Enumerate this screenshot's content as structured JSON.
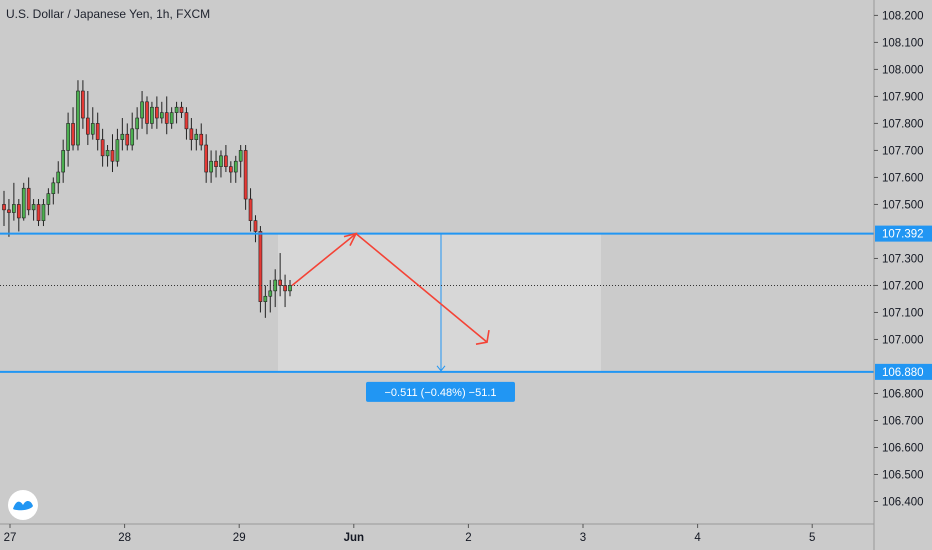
{
  "chart_data": {
    "type": "candlestick",
    "title": "U.S. Dollar / Japanese Yen, 1h, FXCM",
    "y_ticks": [
      "108.200",
      "108.100",
      "108.000",
      "107.900",
      "107.800",
      "107.700",
      "107.600",
      "107.500",
      "107.300",
      "107.200",
      "107.100",
      "107.000",
      "106.800",
      "106.700",
      "106.600",
      "106.500",
      "106.400"
    ],
    "ylim": [
      106.35,
      108.22
    ],
    "x_ticks": [
      {
        "label": "27",
        "bold": false
      },
      {
        "label": "28",
        "bold": false
      },
      {
        "label": "29",
        "bold": false
      },
      {
        "label": "Jun",
        "bold": true
      },
      {
        "label": "2",
        "bold": false
      },
      {
        "label": "3",
        "bold": false
      },
      {
        "label": "4",
        "bold": false
      },
      {
        "label": "5",
        "bold": false
      }
    ],
    "current_price": 107.2,
    "levels": [
      {
        "value": 107.392,
        "label": "107.392"
      },
      {
        "value": 106.88,
        "label": "106.880"
      }
    ],
    "measure": {
      "from": 107.392,
      "to": 106.88,
      "label": "−0.511 (−0.48%) −51.1"
    },
    "projection": {
      "points": [
        [
          107.2,
          0
        ],
        [
          107.392,
          1
        ],
        [
          106.99,
          2
        ]
      ]
    },
    "candles": [
      [
        107.5,
        107.55,
        107.42,
        107.48
      ],
      [
        107.48,
        107.52,
        107.38,
        107.47
      ],
      [
        107.47,
        107.58,
        107.44,
        107.5
      ],
      [
        107.5,
        107.52,
        107.4,
        107.45
      ],
      [
        107.45,
        107.58,
        107.44,
        107.56
      ],
      [
        107.56,
        107.6,
        107.46,
        107.48
      ],
      [
        107.48,
        107.52,
        107.44,
        107.5
      ],
      [
        107.5,
        107.52,
        107.42,
        107.44
      ],
      [
        107.44,
        107.52,
        107.42,
        107.5
      ],
      [
        107.5,
        107.56,
        107.46,
        107.54
      ],
      [
        107.54,
        107.6,
        107.5,
        107.58
      ],
      [
        107.58,
        107.66,
        107.54,
        107.62
      ],
      [
        107.62,
        107.74,
        107.58,
        107.7
      ],
      [
        107.7,
        107.84,
        107.64,
        107.8
      ],
      [
        107.8,
        107.86,
        107.7,
        107.72
      ],
      [
        107.72,
        107.96,
        107.7,
        107.92
      ],
      [
        107.92,
        107.96,
        107.78,
        107.82
      ],
      [
        107.82,
        107.92,
        107.72,
        107.76
      ],
      [
        107.76,
        107.86,
        107.74,
        107.8
      ],
      [
        107.8,
        107.84,
        107.7,
        107.74
      ],
      [
        107.74,
        107.78,
        107.64,
        107.68
      ],
      [
        107.68,
        107.72,
        107.64,
        107.7
      ],
      [
        107.7,
        107.76,
        107.62,
        107.66
      ],
      [
        107.66,
        107.78,
        107.64,
        107.74
      ],
      [
        107.74,
        107.82,
        107.7,
        107.76
      ],
      [
        107.76,
        107.8,
        107.7,
        107.72
      ],
      [
        107.72,
        107.84,
        107.7,
        107.78
      ],
      [
        107.78,
        107.86,
        107.74,
        107.82
      ],
      [
        107.82,
        107.92,
        107.78,
        107.88
      ],
      [
        107.88,
        107.9,
        107.76,
        107.8
      ],
      [
        107.8,
        107.88,
        107.78,
        107.86
      ],
      [
        107.86,
        107.9,
        107.78,
        107.82
      ],
      [
        107.82,
        107.88,
        107.8,
        107.84
      ],
      [
        107.84,
        107.9,
        107.76,
        107.8
      ],
      [
        107.8,
        107.86,
        107.78,
        107.84
      ],
      [
        107.84,
        107.88,
        107.8,
        107.86
      ],
      [
        107.86,
        107.88,
        107.82,
        107.84
      ],
      [
        107.84,
        107.86,
        107.74,
        107.78
      ],
      [
        107.78,
        107.82,
        107.7,
        107.74
      ],
      [
        107.74,
        107.78,
        107.7,
        107.76
      ],
      [
        107.76,
        107.8,
        107.7,
        107.72
      ],
      [
        107.72,
        107.76,
        107.58,
        107.62
      ],
      [
        107.62,
        107.7,
        107.58,
        107.66
      ],
      [
        107.66,
        107.7,
        107.6,
        107.64
      ],
      [
        107.64,
        107.7,
        107.6,
        107.68
      ],
      [
        107.68,
        107.72,
        107.62,
        107.64
      ],
      [
        107.64,
        107.66,
        107.58,
        107.62
      ],
      [
        107.62,
        107.68,
        107.58,
        107.66
      ],
      [
        107.66,
        107.72,
        107.6,
        107.7
      ],
      [
        107.7,
        107.72,
        107.48,
        107.52
      ],
      [
        107.52,
        107.56,
        107.4,
        107.44
      ],
      [
        107.44,
        107.46,
        107.36,
        107.4
      ],
      [
        107.4,
        107.42,
        107.1,
        107.14
      ],
      [
        107.14,
        107.2,
        107.08,
        107.16
      ],
      [
        107.16,
        107.22,
        107.1,
        107.18
      ],
      [
        107.18,
        107.26,
        107.12,
        107.22
      ],
      [
        107.22,
        107.32,
        107.16,
        107.2
      ],
      [
        107.2,
        107.24,
        107.12,
        107.18
      ],
      [
        107.18,
        107.22,
        107.16,
        107.2
      ]
    ]
  }
}
